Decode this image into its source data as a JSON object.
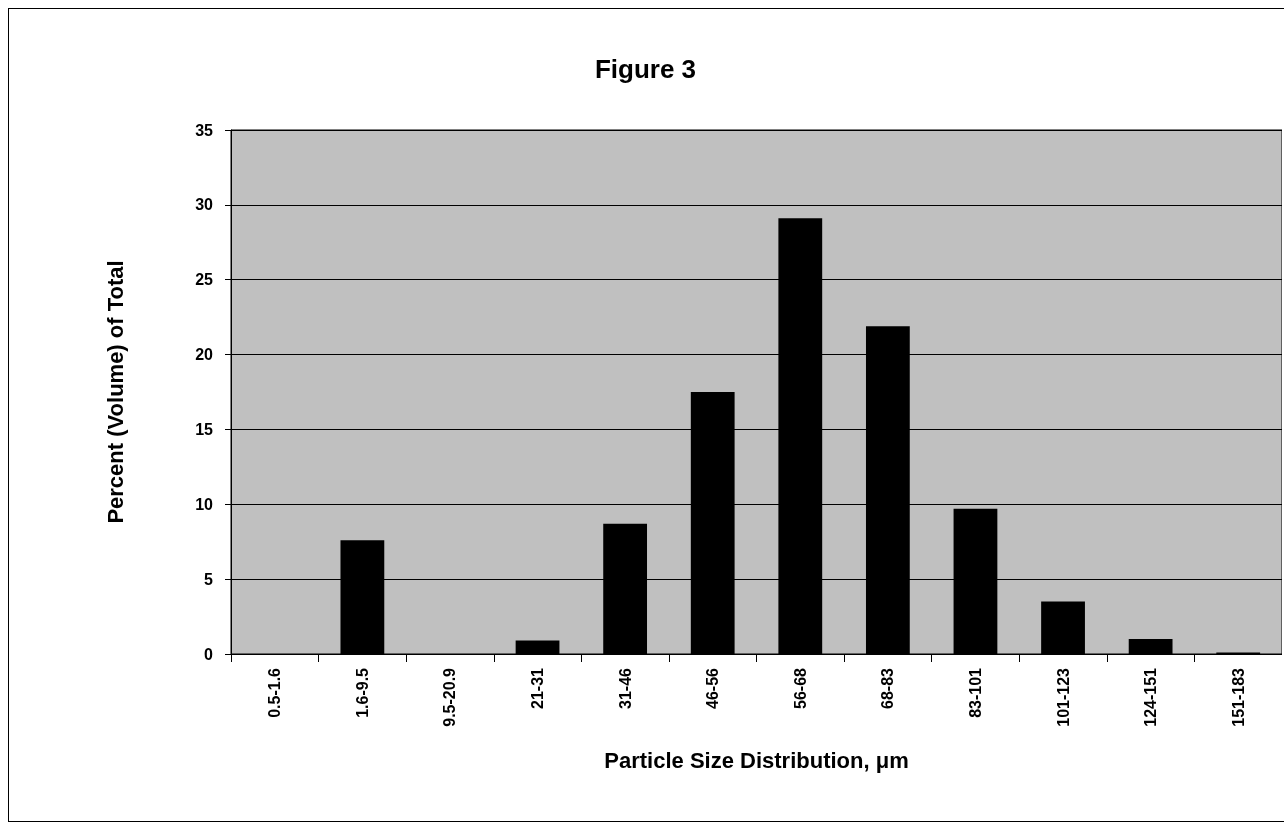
{
  "chart_data": {
    "type": "bar",
    "title": "Figure 3",
    "xlabel": "Particle Size Distribution, μm",
    "ylabel": "Percent (Volume) of Total",
    "categories": [
      "0.5-1.6",
      "1.6-9.5",
      "9.5-20.9",
      "21-31",
      "31-46",
      "46-56",
      "56-68",
      "68-83",
      "83-101",
      "101-123",
      "124-151",
      "151-183"
    ],
    "values": [
      0,
      7.6,
      0,
      0.9,
      8.7,
      17.5,
      29.1,
      21.9,
      9.7,
      3.5,
      1.0,
      0.1
    ],
    "color": "#000000",
    "ylim": [
      0,
      35
    ],
    "yticks": [
      0,
      5,
      10,
      15,
      20,
      25,
      30,
      35
    ],
    "grid": "y"
  }
}
